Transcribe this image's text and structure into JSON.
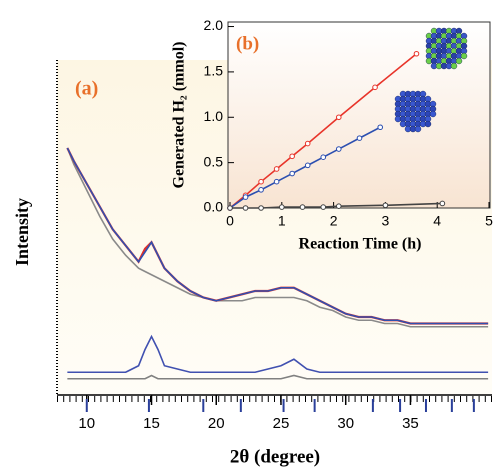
{
  "chart_data": [
    {
      "type": "line",
      "label": "(a)",
      "ylabel": "Intensity",
      "xlabel": "2θ (degree)",
      "xlim": [
        7.7,
        41.3
      ],
      "xticks": [
        10,
        15,
        20,
        25,
        30,
        35
      ],
      "ylim": [
        0,
        100
      ],
      "x": [
        8.5,
        9,
        10,
        11,
        12,
        13,
        14,
        14.5,
        15,
        15.5,
        16,
        17,
        18,
        19,
        20,
        21,
        22,
        23,
        24,
        25,
        26,
        27,
        28,
        29,
        30,
        31,
        32,
        33,
        34,
        35,
        36,
        37,
        38,
        39,
        40,
        41
      ],
      "series": [
        {
          "color": "#e0302a",
          "values": [
            76,
            72,
            65,
            58,
            51,
            46,
            41,
            45,
            47,
            43,
            39,
            35,
            32,
            30,
            29,
            30,
            31,
            32,
            32,
            33,
            33,
            31,
            29,
            27,
            25,
            24,
            24,
            23,
            23,
            22,
            22,
            22,
            22,
            22,
            22,
            22
          ]
        },
        {
          "color": "#3050b0",
          "values": [
            76,
            72,
            65,
            58,
            51,
            46,
            41,
            44,
            47,
            43,
            39,
            35,
            32,
            30,
            29,
            30,
            31,
            32,
            32,
            33,
            33,
            31,
            29,
            27,
            25,
            24,
            24,
            23,
            23,
            22,
            22,
            22,
            22,
            22,
            22,
            22
          ]
        },
        {
          "color": "#8a8a8a",
          "values": [
            76,
            71,
            63,
            55,
            48,
            43,
            39,
            38,
            37,
            36,
            35,
            33,
            31,
            30,
            29,
            29,
            29,
            30,
            30,
            30,
            30,
            29,
            27,
            26,
            24,
            23,
            23,
            22,
            22,
            21,
            21,
            21,
            21,
            21,
            21,
            21
          ]
        },
        {
          "color": "#4050b0",
          "values": [
            7,
            7,
            7,
            7,
            7,
            7,
            9,
            14,
            18,
            14,
            9,
            8,
            7,
            7,
            7,
            7,
            7,
            7,
            8,
            9,
            11,
            8,
            7,
            7,
            7,
            7,
            7,
            7,
            7,
            7,
            7,
            7,
            7,
            7,
            7,
            7
          ]
        },
        {
          "color": "#808080",
          "values": [
            5,
            5,
            5,
            5,
            5,
            5,
            5,
            5,
            6,
            5,
            5,
            5,
            5,
            5,
            5,
            5,
            5,
            5,
            5,
            5,
            6,
            5,
            5,
            5,
            5,
            5,
            5,
            5,
            5,
            5,
            5,
            5,
            5,
            5,
            5,
            5
          ]
        }
      ],
      "reflections": {
        "color": "#2a3f9a",
        "x": [
          10,
          14.8,
          19,
          21.9,
          25.2,
          27.6,
          32.1,
          34.2,
          36.2,
          38.2,
          39.9
        ]
      }
    },
    {
      "type": "line",
      "label": "(b)",
      "ylabel": "Generated H₂ (mmol)",
      "xlabel": "Reaction Time (h)",
      "xlim": [
        0,
        5
      ],
      "xticks": [
        0,
        1,
        2,
        3,
        4,
        5
      ],
      "ylim": [
        0,
        2.05
      ],
      "yticks": [
        {
          "value": 0,
          "label": "0.0"
        },
        0.5,
        {
          "value": 1,
          "label": "1.0"
        },
        1.5,
        {
          "value": 2,
          "label": "2.0"
        }
      ],
      "series": [
        {
          "color": "#e8342a",
          "x": [
            0,
            0.3,
            0.6,
            0.9,
            1.2,
            1.5,
            2.1,
            2.8,
            3.6
          ],
          "values": [
            0,
            0.14,
            0.29,
            0.43,
            0.57,
            0.71,
            1.0,
            1.33,
            1.7
          ]
        },
        {
          "color": "#2c4fb0",
          "x": [
            0,
            0.3,
            0.6,
            0.9,
            1.2,
            1.5,
            1.8,
            2.1,
            2.5,
            2.9
          ],
          "values": [
            0,
            0.12,
            0.2,
            0.29,
            0.38,
            0.47,
            0.56,
            0.65,
            0.77,
            0.89
          ]
        },
        {
          "color": "#444444",
          "x": [
            0,
            0.3,
            0.6,
            1,
            1.4,
            1.8,
            2.1,
            3,
            4.1
          ],
          "values": [
            0,
            0,
            0,
            0.01,
            0.01,
            0.01,
            0.02,
            0.03,
            0.05
          ]
        }
      ]
    }
  ]
}
